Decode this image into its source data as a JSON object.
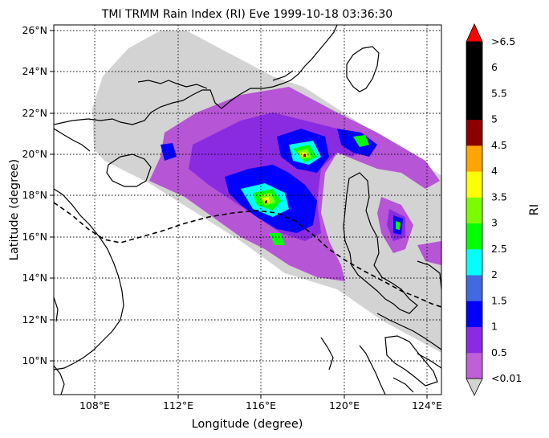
{
  "title": "TMI TRMM Rain Index (RI) Eve 1999-10-18 03:36:30",
  "xlabel": "Longitude (degree)",
  "ylabel": "Latitude (degree)",
  "lon_range": [
    106,
    124.7
  ],
  "lat_range": [
    8.4,
    26.3
  ],
  "lon_ticks": [
    {
      "value": 108,
      "label": "108°E"
    },
    {
      "value": 112,
      "label": "112°E"
    },
    {
      "value": 116,
      "label": "116°E"
    },
    {
      "value": 120,
      "label": "120°E"
    },
    {
      "value": 124,
      "label": "124°E"
    }
  ],
  "lat_ticks": [
    {
      "value": 10,
      "label": "10°N"
    },
    {
      "value": 12,
      "label": "12°N"
    },
    {
      "value": 14,
      "label": "14°N"
    },
    {
      "value": 16,
      "label": "16°N"
    },
    {
      "value": 18,
      "label": "18°N"
    },
    {
      "value": 20,
      "label": "20°N"
    },
    {
      "value": 22,
      "label": "22°N"
    },
    {
      "value": 24,
      "label": "24°N"
    },
    {
      "value": 26,
      "label": "26°N"
    }
  ],
  "colorbar": {
    "label": "RI",
    "bins": [
      {
        "color": "#c060d8",
        "label": "<0.01"
      },
      {
        "color": "#8a2be2",
        "label": "0.5"
      },
      {
        "color": "#0000ff",
        "label": "1"
      },
      {
        "color": "#4169e1",
        "label": "1.5"
      },
      {
        "color": "#00ffff",
        "label": "2"
      },
      {
        "color": "#00ff00",
        "label": "2.5"
      },
      {
        "color": "#7cfc00",
        "label": "3"
      },
      {
        "color": "#ffff00",
        "label": "3.5"
      },
      {
        "color": "#ffa500",
        "label": "4"
      },
      {
        "color": "#8b0000",
        "label": "4.5"
      },
      {
        "color": "#000000",
        "label": "5"
      },
      {
        "color": "#000000",
        "label": "5.5"
      },
      {
        "color": "#000000",
        "label": "6"
      }
    ],
    "top_label": ">6.5",
    "over_color": "#ff0000",
    "under_color": "#d3d3d3"
  },
  "swath_color": "#d3d3d3",
  "grid": "dotted"
}
